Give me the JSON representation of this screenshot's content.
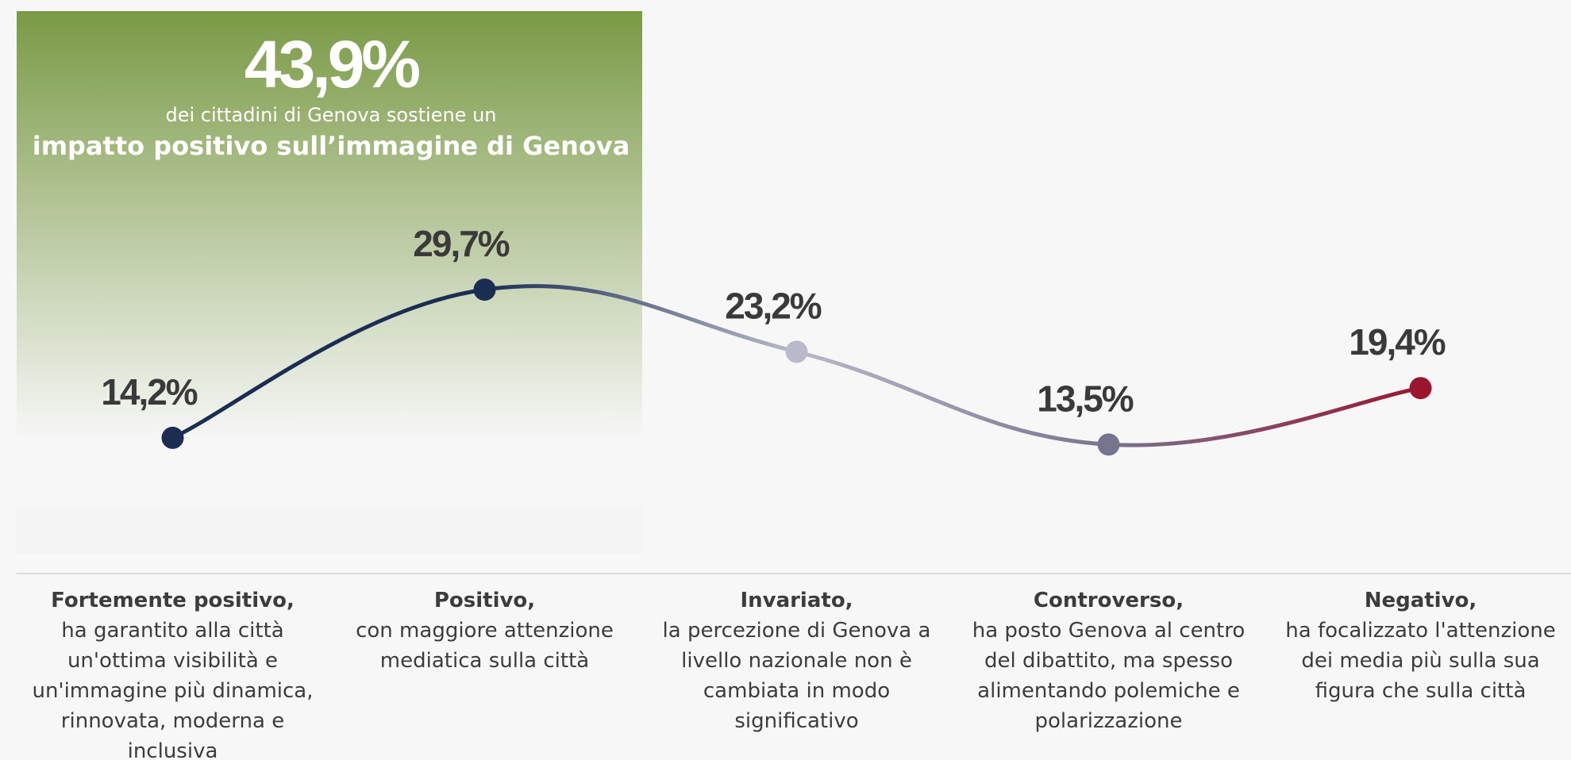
{
  "chart_data": {
    "type": "line",
    "categories": [
      "Fortemente positivo,",
      "Positivo,",
      "Invariato,",
      "Controverso,",
      "Negativo,"
    ],
    "descriptions": [
      "ha garantito alla città un'ottima visibilità e un'immagine più dinamica, rinnovata, moderna e inclusiva",
      "con maggiore attenzione mediatica sulla città",
      "la percezione di Genova a livello nazionale non è cambiata in modo significativo",
      "ha posto Genova al centro del dibattito, ma spesso alimentando polemiche e polarizzazione",
      "ha focalizzato l'attenzione dei media più sulla sua figura che sulla città"
    ],
    "values": [
      14.2,
      29.7,
      23.2,
      13.5,
      19.4
    ],
    "value_labels": [
      "14,2%",
      "29,7%",
      "23,2%",
      "13,5%",
      "19,4%"
    ],
    "colors": [
      "#1b2d52",
      "#1b2d52",
      "#b9b9c9",
      "#777490",
      "#9b1530"
    ],
    "ylim": [
      0,
      60
    ],
    "highlight": {
      "value": 43.9,
      "label": "43,9%",
      "text": "dei cittadini di Genova sostiene un",
      "emphasis": "impatto positivo sull’immagine di Genova",
      "color": "#7a9a45"
    }
  }
}
